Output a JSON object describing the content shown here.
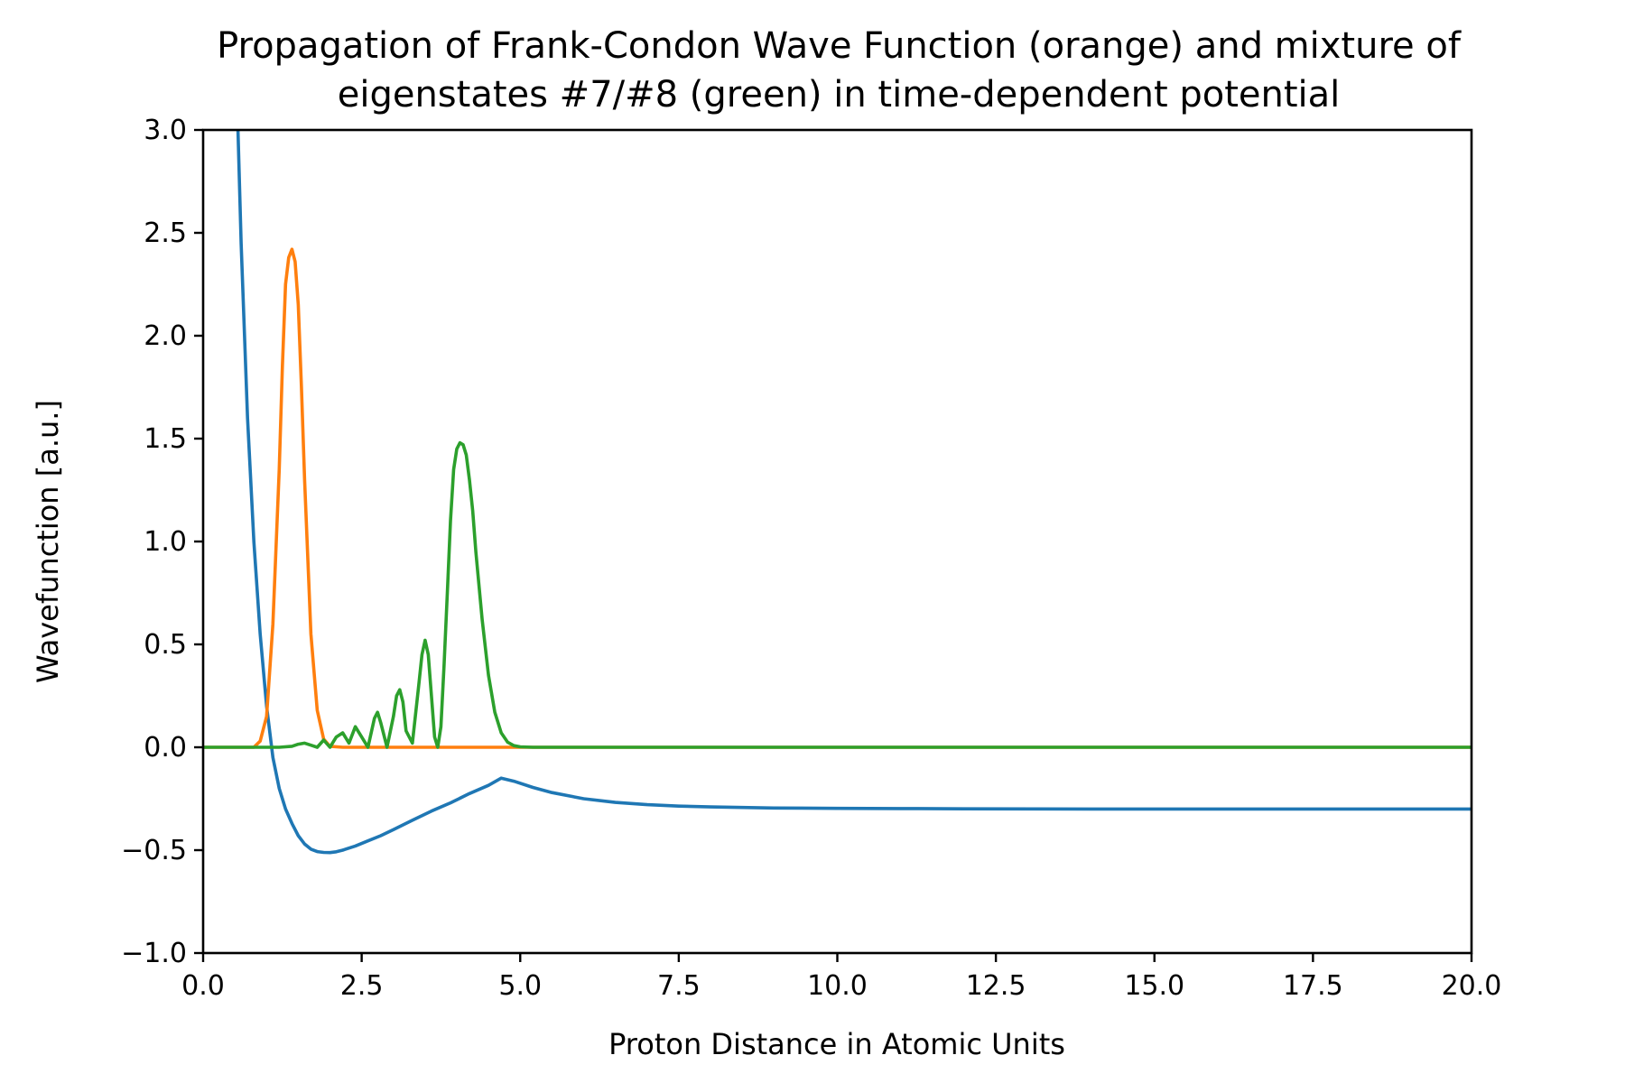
{
  "chart_data": {
    "type": "line",
    "title_lines": [
      "Propagation of Frank-Condon Wave Function (orange) and mixture of",
      "eigenstates #7/#8 (green) in time-dependent potential"
    ],
    "xlabel": "Proton Distance in Atomic Units",
    "ylabel": "Wavefunction [a.u.]",
    "xlim": [
      0,
      20
    ],
    "ylim": [
      -1,
      3
    ],
    "xticks": [
      0,
      2.5,
      5,
      7.5,
      10,
      12.5,
      15,
      17.5,
      20
    ],
    "xtick_labels": [
      "0.0",
      "2.5",
      "5.0",
      "7.5",
      "10.0",
      "12.5",
      "15.0",
      "17.5",
      "20.0"
    ],
    "yticks": [
      -1,
      -0.5,
      0,
      0.5,
      1,
      1.5,
      2,
      2.5,
      3
    ],
    "ytick_labels": [
      "−1.0",
      "−0.5",
      "0.0",
      "0.5",
      "1.0",
      "1.5",
      "2.0",
      "2.5",
      "3.0"
    ],
    "grid": false,
    "series": [
      {
        "color": "#1f77b4",
        "x": [
          0.55,
          0.6,
          0.7,
          0.8,
          0.9,
          1.0,
          1.1,
          1.2,
          1.3,
          1.4,
          1.5,
          1.6,
          1.7,
          1.8,
          1.9,
          2.0,
          2.1,
          2.2,
          2.4,
          2.6,
          2.8,
          3.0,
          3.3,
          3.6,
          3.9,
          4.2,
          4.5,
          4.7,
          4.9,
          5.2,
          5.5,
          6.0,
          6.5,
          7.0,
          7.5,
          8.0,
          9.0,
          10.0,
          11.0,
          12.0,
          14.0,
          16.0,
          18.0,
          20.0
        ],
        "values": [
          3.0,
          2.45,
          1.6,
          1.0,
          0.55,
          0.2,
          -0.05,
          -0.2,
          -0.3,
          -0.37,
          -0.43,
          -0.47,
          -0.495,
          -0.507,
          -0.511,
          -0.512,
          -0.508,
          -0.5,
          -0.48,
          -0.455,
          -0.43,
          -0.4,
          -0.355,
          -0.31,
          -0.27,
          -0.225,
          -0.185,
          -0.15,
          -0.165,
          -0.195,
          -0.22,
          -0.25,
          -0.268,
          -0.279,
          -0.286,
          -0.29,
          -0.295,
          -0.297,
          -0.298,
          -0.299,
          -0.3,
          -0.3,
          -0.3,
          -0.3
        ]
      },
      {
        "color": "#ff7f0e",
        "x": [
          0,
          0.8,
          0.9,
          1.0,
          1.1,
          1.2,
          1.25,
          1.3,
          1.35,
          1.4,
          1.45,
          1.5,
          1.55,
          1.6,
          1.7,
          1.8,
          1.9,
          2.0,
          2.2,
          20.0
        ],
        "values": [
          0,
          0,
          0.03,
          0.15,
          0.6,
          1.35,
          1.85,
          2.25,
          2.38,
          2.42,
          2.36,
          2.15,
          1.75,
          1.3,
          0.55,
          0.18,
          0.04,
          0.005,
          0,
          0
        ]
      },
      {
        "color": "#2ca02c",
        "x": [
          0,
          1.2,
          1.4,
          1.5,
          1.6,
          1.7,
          1.8,
          1.9,
          2.0,
          2.1,
          2.2,
          2.3,
          2.4,
          2.5,
          2.6,
          2.7,
          2.75,
          2.8,
          2.9,
          3.0,
          3.05,
          3.1,
          3.15,
          3.2,
          3.3,
          3.4,
          3.45,
          3.5,
          3.55,
          3.6,
          3.65,
          3.7,
          3.75,
          3.8,
          3.85,
          3.9,
          3.95,
          4.0,
          4.05,
          4.1,
          4.15,
          4.2,
          4.25,
          4.3,
          4.4,
          4.5,
          4.6,
          4.7,
          4.8,
          4.9,
          5.0,
          5.2,
          20.0
        ],
        "values": [
          0,
          0,
          0.005,
          0.015,
          0.02,
          0.01,
          0.0,
          0.035,
          0.0,
          0.05,
          0.07,
          0.02,
          0.1,
          0.05,
          0.0,
          0.14,
          0.17,
          0.12,
          0.0,
          0.15,
          0.25,
          0.28,
          0.22,
          0.08,
          0.02,
          0.3,
          0.45,
          0.52,
          0.45,
          0.25,
          0.05,
          0.0,
          0.1,
          0.4,
          0.75,
          1.1,
          1.35,
          1.45,
          1.48,
          1.47,
          1.42,
          1.3,
          1.15,
          0.95,
          0.62,
          0.35,
          0.17,
          0.07,
          0.025,
          0.008,
          0.002,
          0,
          0
        ]
      }
    ]
  }
}
